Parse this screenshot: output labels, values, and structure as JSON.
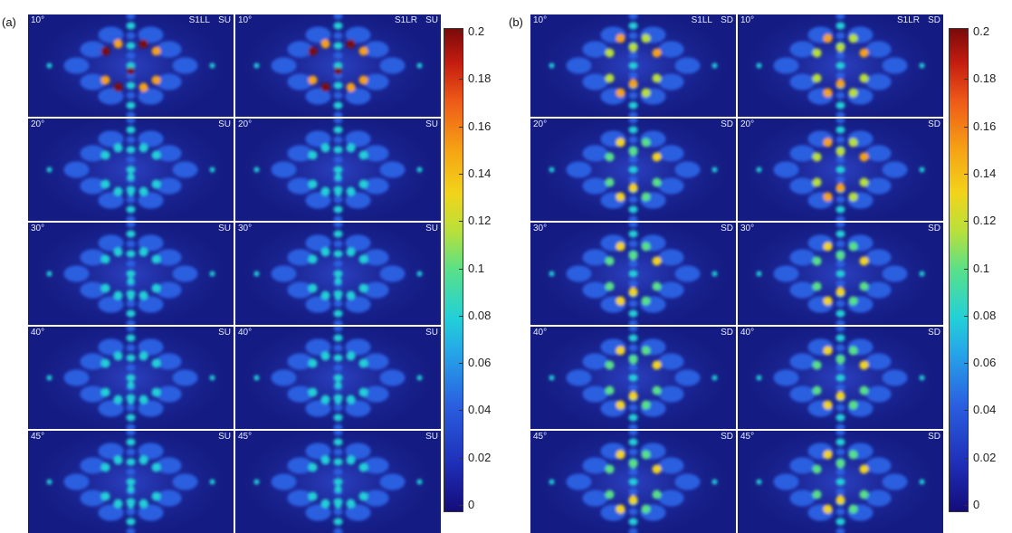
{
  "panels": [
    {
      "letter": "(a)",
      "tag": "SU",
      "columns": [
        {
          "series": "S1LL",
          "rows": [
            {
              "angle": "10°",
              "tag": "SU",
              "peak": 0.2
            },
            {
              "angle": "20°",
              "tag": "SU",
              "peak": 0.1
            },
            {
              "angle": "30°",
              "tag": "SU",
              "peak": 0.09
            },
            {
              "angle": "40°",
              "tag": "SU",
              "peak": 0.09
            },
            {
              "angle": "45°",
              "tag": "SU",
              "peak": 0.09
            }
          ]
        },
        {
          "series": "S1LR",
          "rows": [
            {
              "angle": "10°",
              "tag": "SU",
              "peak": 0.2
            },
            {
              "angle": "20°",
              "tag": "SU",
              "peak": 0.1
            },
            {
              "angle": "30°",
              "tag": "SU",
              "peak": 0.09
            },
            {
              "angle": "40°",
              "tag": "SU",
              "peak": 0.09
            },
            {
              "angle": "45°",
              "tag": "SU",
              "peak": 0.09
            }
          ]
        }
      ],
      "colorbar_ticks": [
        "0.2",
        "0.18",
        "0.16",
        "0.14",
        "0.12",
        "0.1",
        "0.08",
        "0.06",
        "0.04",
        "0.02",
        "0"
      ]
    },
    {
      "letter": "(b)",
      "tag": "SD",
      "columns": [
        {
          "series": "S1LL",
          "rows": [
            {
              "angle": "10°",
              "tag": "SD",
              "peak": 0.14
            },
            {
              "angle": "20°",
              "tag": "SD",
              "peak": 0.13
            },
            {
              "angle": "30°",
              "tag": "SD",
              "peak": 0.13
            },
            {
              "angle": "40°",
              "tag": "SD",
              "peak": 0.12
            },
            {
              "angle": "45°",
              "tag": "SD",
              "peak": 0.12
            }
          ]
        },
        {
          "series": "S1LR",
          "rows": [
            {
              "angle": "10°",
              "tag": "SD",
              "peak": 0.14
            },
            {
              "angle": "20°",
              "tag": "SD",
              "peak": 0.14
            },
            {
              "angle": "30°",
              "tag": "SD",
              "peak": 0.13
            },
            {
              "angle": "40°",
              "tag": "SD",
              "peak": 0.13
            },
            {
              "angle": "45°",
              "tag": "SD",
              "peak": 0.12
            }
          ]
        }
      ],
      "colorbar_ticks": [
        "0.2",
        "0.18",
        "0.16",
        "0.14",
        "0.12",
        "0.1",
        "0.08",
        "0.06",
        "0.04",
        "0.02",
        "0"
      ]
    }
  ],
  "colormap": [
    "#140c7a",
    "#1f2fb8",
    "#2a5fe0",
    "#26a6e8",
    "#22d0d8",
    "#58e08a",
    "#b8e03a",
    "#f2d41a",
    "#f6a214",
    "#ee5a18",
    "#c41c10",
    "#7a0a0a"
  ],
  "colorbar_range": [
    0,
    0.2
  ]
}
